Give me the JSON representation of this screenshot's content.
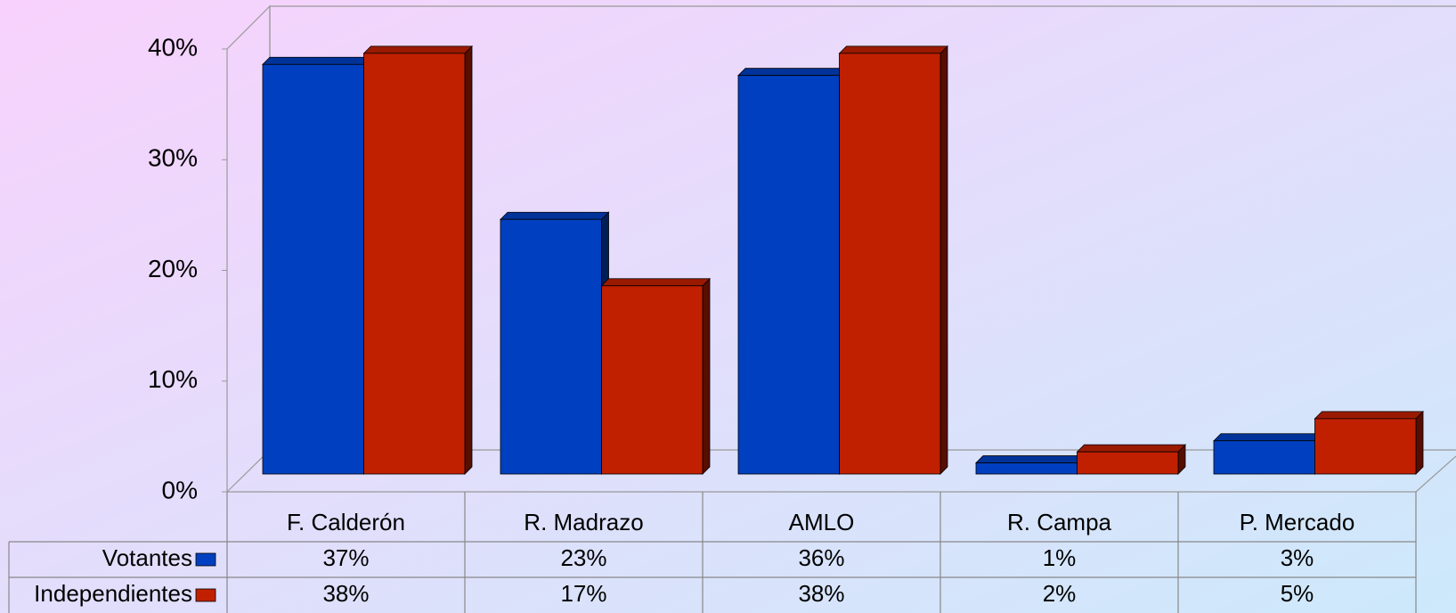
{
  "chart_data": {
    "type": "bar3d",
    "categories": [
      "F. Calderón",
      "R. Madrazo",
      "AMLO",
      "R. Campa",
      "P. Mercado"
    ],
    "series": [
      {
        "name": "Votantes",
        "color": "#0040c0",
        "values": [
          37,
          23,
          36,
          1,
          3
        ],
        "value_labels": [
          "37%",
          "23%",
          "36%",
          "1%",
          "3%"
        ]
      },
      {
        "name": "Independientes",
        "color": "#c02000",
        "values": [
          38,
          17,
          38,
          2,
          5
        ],
        "value_labels": [
          "38%",
          "17%",
          "38%",
          "2%",
          "5%"
        ]
      }
    ],
    "ylim": [
      0,
      40
    ],
    "yticks": [
      {
        "value": 0,
        "label": "0%"
      },
      {
        "value": 10,
        "label": "10%"
      },
      {
        "value": 20,
        "label": "20%"
      },
      {
        "value": 30,
        "label": "30%"
      },
      {
        "value": 40,
        "label": "40%"
      }
    ],
    "legend": "table"
  }
}
